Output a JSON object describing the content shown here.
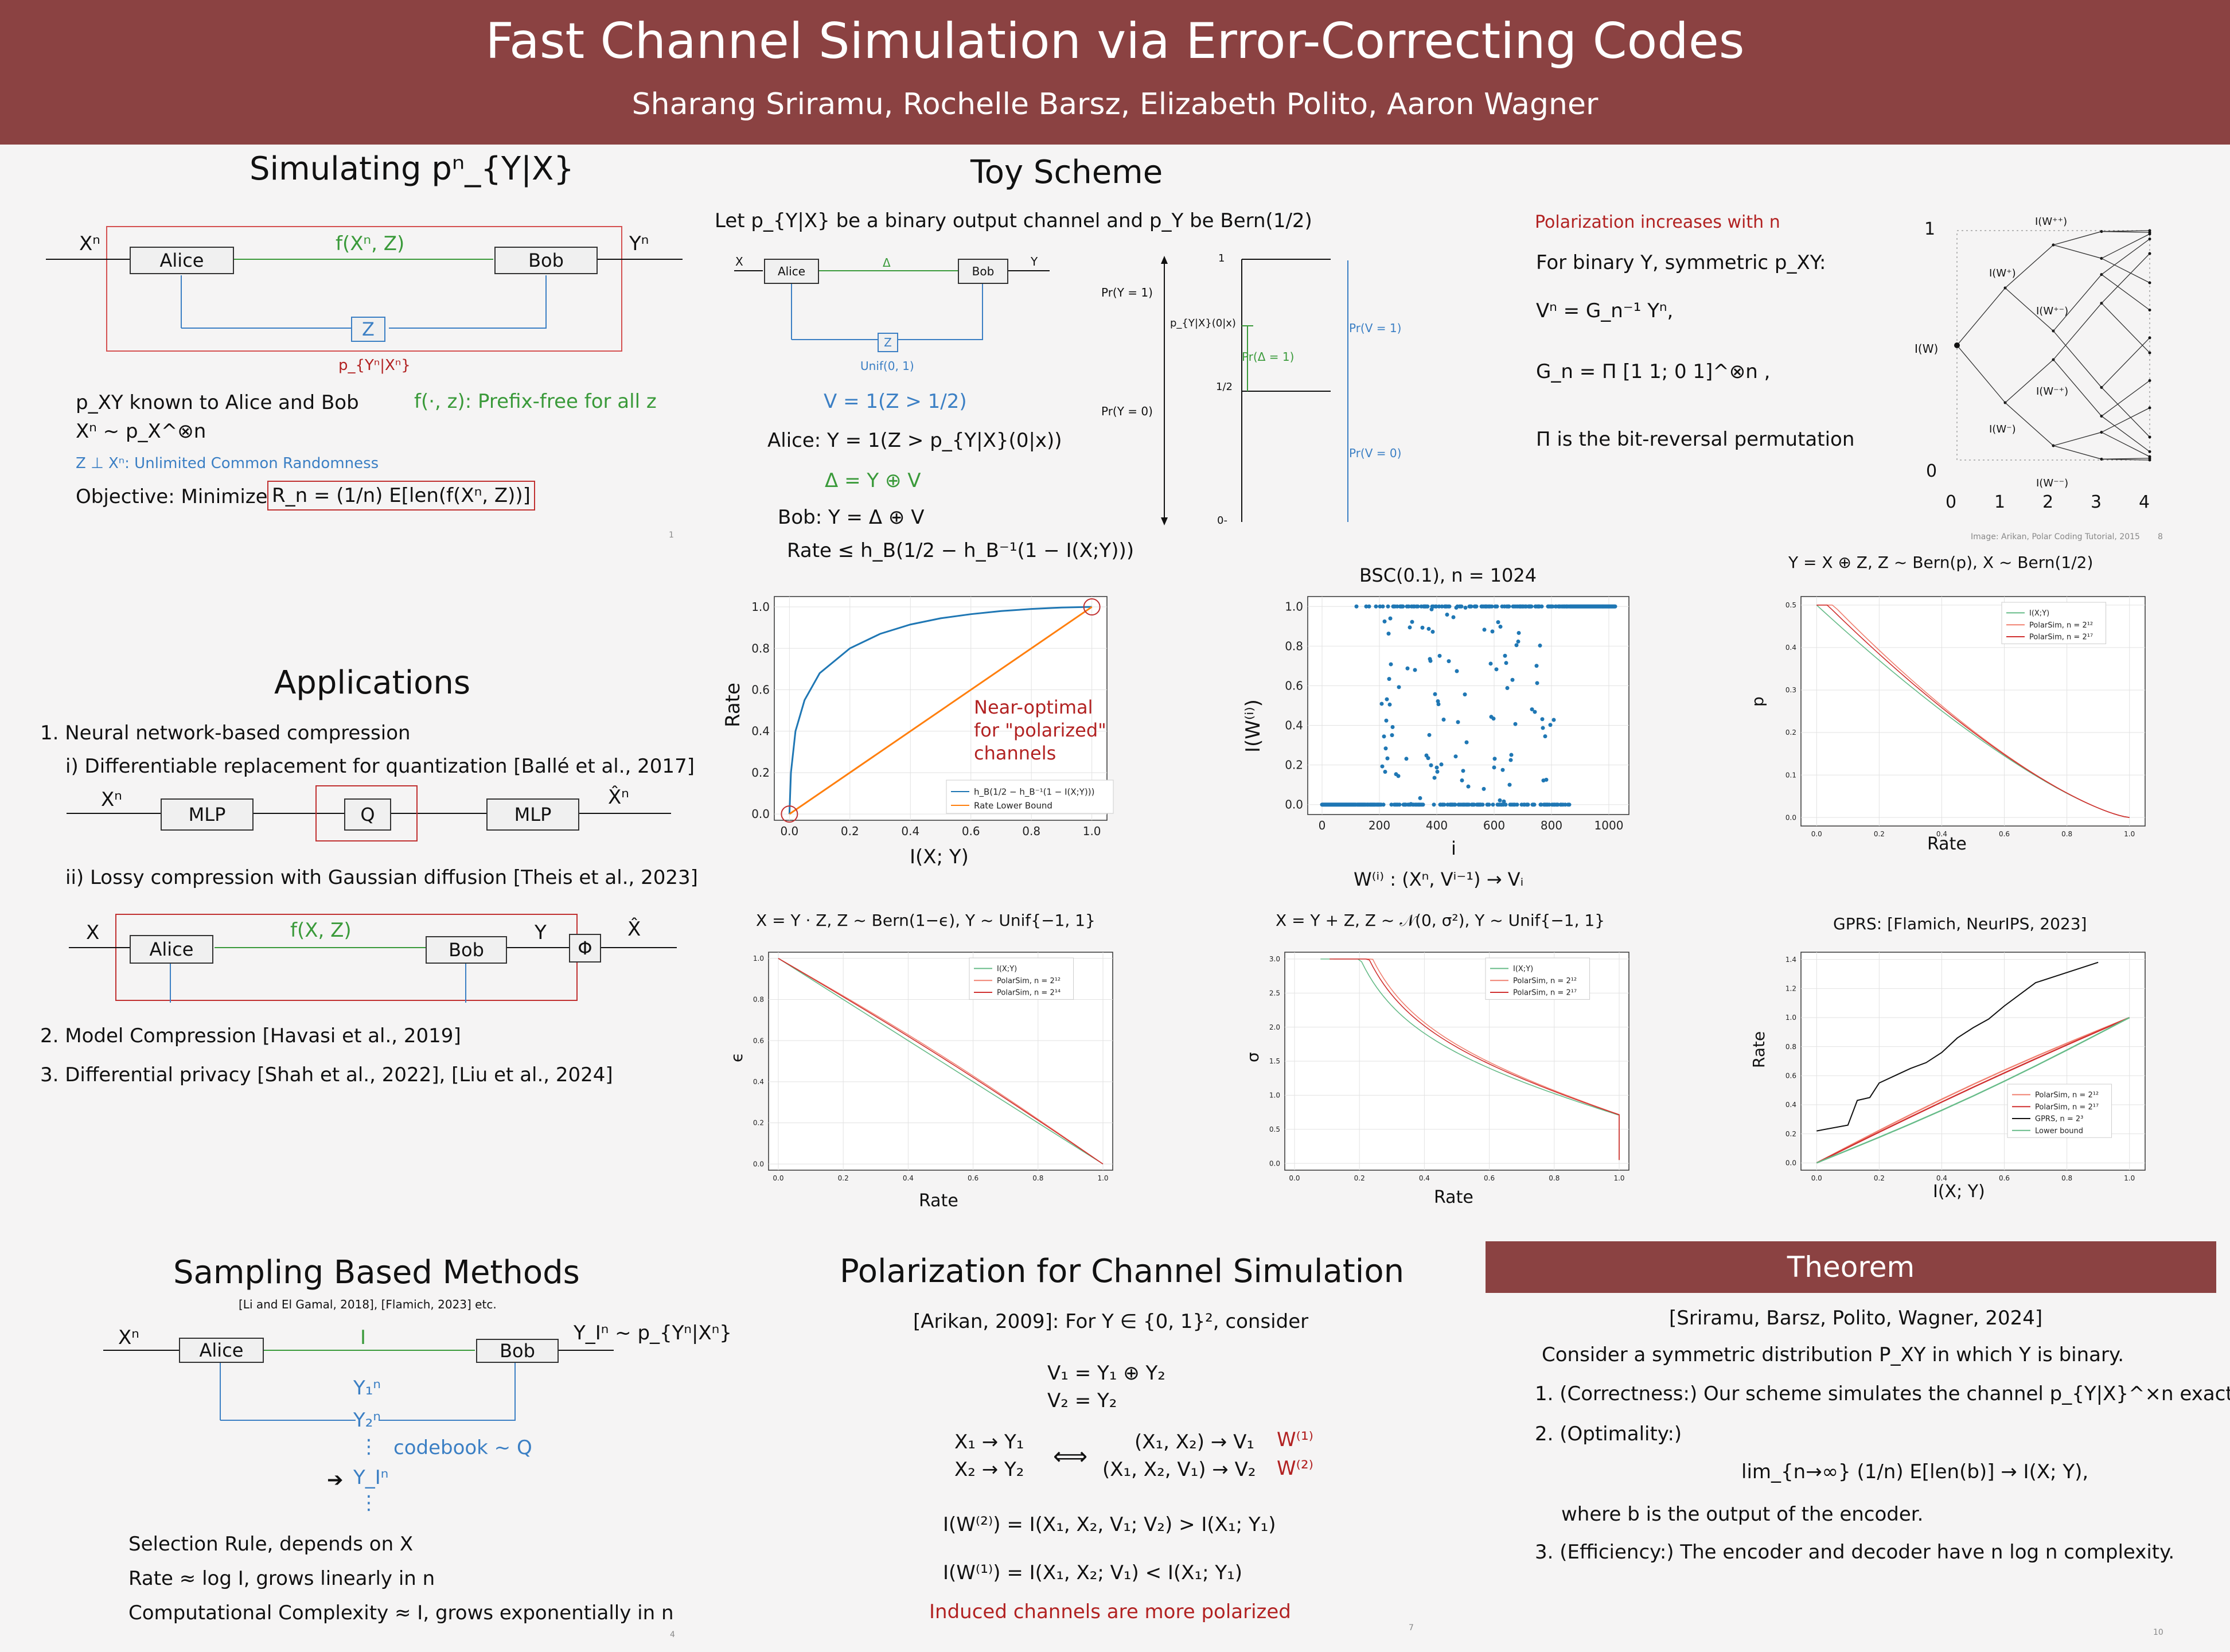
{
  "header": {
    "title": "Fast Channel Simulation via Error-Correcting Codes",
    "authors": "Sharang Sriramu, Rochelle Barsz, Elizabeth Polito, Aaron Wagner"
  },
  "sim": {
    "title": "Simulating pⁿ_{Y|X}",
    "xn": "Xⁿ",
    "yn": "Yⁿ",
    "alice": "Alice",
    "bob": "Bob",
    "f": "f(Xⁿ, Z)",
    "z": "Z",
    "p": "p_{Yⁿ|Xⁿ}",
    "l1": "p_XY known to Alice and Bob",
    "l1r": "f(·, z): Prefix-free for all z",
    "l2": "Xⁿ ~ p_X^⊗n",
    "l3": "Z ⊥ Xⁿ: Unlimited Common Randomness",
    "l4a": "Objective: Minimize",
    "l4b": "R_n = (1/n) E[len(f(Xⁿ, Z))]",
    "page": "1"
  },
  "toy": {
    "title": "Toy Scheme",
    "intro": "Let p_{Y|X} be a binary output channel and p_Y be Bern(1/2)",
    "x": "X",
    "y": "Y",
    "delta": "Δ",
    "alice": "Alice",
    "bob": "Bob",
    "z": "Z",
    "unif": "Unif(0, 1)",
    "v": "V = 1(Z > 1/2)",
    "alice_rule": "Alice: Y = 1(Z > p_{Y|X}(0|x))",
    "d": "Δ = Y ⊕ V",
    "bob_rule": "Bob: Y = Δ ⊕ V",
    "rate": "Rate ≤ h_B(1/2 − h_B⁻¹(1 − I(X;Y)))",
    "pr1": "Pr(Y = 1)",
    "pr0": "Pr(Y = 0)",
    "pyx": "p_{Y|X}(0|x)",
    "pd": "Pr(Δ = 1)",
    "pv1": "Pr(V = 1)",
    "pv0": "Pr(V = 0)",
    "one": "1",
    "half": "1/2",
    "zero": "0-"
  },
  "pol": {
    "title": "Polarization increases with n",
    "l1": "For binary Y, symmetric p_XY:",
    "l2": "Vⁿ = G_n⁻¹ Yⁿ,",
    "l3": "G_n = Π [1 1; 0 1]^⊗n ,",
    "l4": "Π is the bit-reversal permutation",
    "credit": "Image: Arikan, Polar Coding Tutorial, 2015",
    "page": "8",
    "yticks": [
      "1",
      "I(W)",
      "0"
    ],
    "xticks": [
      "0",
      "1",
      "2",
      "3",
      "4"
    ],
    "wlabels": [
      "I(W⁺⁺)",
      "I(W⁺)",
      "I(W⁺⁻)",
      "I(W⁻⁺)",
      "I(W⁻)",
      "I(W⁻⁻)"
    ]
  },
  "apps": {
    "title": "Applications",
    "i1": "1. Neural network-based compression",
    "i1a": "i) Differentiable replacement for quantization [Ballé et al., 2017]",
    "xn": "Xⁿ",
    "mlp1": "MLP",
    "q": "Q",
    "mlp2": "MLP",
    "xhatn": "X̂ⁿ",
    "i1b": "ii) Lossy compression with Gaussian diffusion [Theis et al., 2023]",
    "x": "X",
    "alice": "Alice",
    "f": "f(X, Z)",
    "bob": "Bob",
    "y": "Y",
    "phi": "Φ",
    "xhat": "X̂",
    "i2": "2. Model Compression [Havasi et al., 2019]",
    "i3": "3. Differential privacy [Shah et al., 2022], [Liu et al., 2024]"
  },
  "samp": {
    "title": "Sampling Based Methods",
    "refs": "[Li and El Gamal, 2018], [Flamich, 2023] etc.",
    "xn": "Xⁿ",
    "alice": "Alice",
    "i": "I",
    "bob": "Bob",
    "yi": "Y_Iⁿ ~ p_{Yⁿ|Xⁿ}",
    "y1": "Y₁ⁿ",
    "y2": "Y₂ⁿ",
    "dots": "⋮",
    "yI": "Y_Iⁿ",
    "cb": "codebook ~ Q",
    "arrow": "➔",
    "l1": "Selection Rule, depends on X",
    "l2": "Rate ≈ log I, grows linearly in n",
    "l3": "Computational Complexity ≈ I, grows exponentially in n",
    "page": "4"
  },
  "pcs": {
    "title": "Polarization for Channel Simulation",
    "l1": "[Arikan, 2009]: For Y ∈ {0, 1}², consider",
    "v1": "V₁ = Y₁ ⊕ Y₂",
    "v2": "V₂ = Y₂",
    "x1": "X₁ → Y₁",
    "x2": "X₂ → Y₂",
    "iff": "⟺",
    "c1": "(X₁, X₂) → V₁",
    "c2": "(X₁, X₂, V₁) → V₂",
    "w1": "W⁽¹⁾",
    "w2": "W⁽²⁾",
    "e1": "I(W⁽²⁾) = I(X₁, X₂, V₁; V₂) > I(X₁; Y₁)",
    "e2": "I(W⁽¹⁾) = I(X₁, X₂; V₁) < I(X₁; Y₁)",
    "note": "Induced channels are more polarized",
    "page": "7"
  },
  "thm": {
    "title": "Theorem",
    "cite": "[Sriramu, Barsz, Polito, Wagner, 2024]",
    "l1": "Consider a symmetric distribution P_XY in which Y is binary.",
    "t1": "1. (Correctness:) Our scheme simulates the channel p_{Y|X}^×n exactly.",
    "t2": "2. (Optimality:)",
    "t2eq": "lim_{n→∞} (1/n) E[len(b)] → I(X; Y),",
    "t2b": "where b is the output of the encoder.",
    "t3": "3. (Efficiency:) The encoder and decoder have n log n complexity.",
    "page": "10"
  },
  "charts": {
    "rate_xlabel": "I(X; Y)",
    "rate_ylabel": "Rate",
    "near": [
      "Near-optimal",
      "for \"polarized\"",
      "channels"
    ],
    "bsc_title": "BSC(0.1), n = 1024",
    "bsc_ylabel": "I(W⁽ⁱ⁾)",
    "bsc_xlabel": "i",
    "bsc_caption": "W⁽ⁱ⁾ : (Xⁿ, Vⁱ⁻¹) → Vᵢ",
    "c3_title": "Y = X ⊕ Z,  Z ~ Bern(p),  X ~ Bern(1/2)",
    "c4_title": "X = Y · Z,  Z ~ Bern(1−ϵ),  Y ~ Unif{−1, 1}",
    "c5_title": "X = Y + Z,  Z ~ 𝒩(0, σ²),  Y ~ Unif{−1, 1}",
    "c6_title": "GPRS: [Flamich, NeurIPS, 2023]"
  },
  "chart_data": [
    {
      "type": "line",
      "xlabel": "I(X; Y)",
      "ylabel": "Rate",
      "xlim": [
        0,
        1
      ],
      "ylim": [
        0,
        1
      ],
      "xticks": [
        "0.0",
        "0.2",
        "0.4",
        "0.6",
        "0.8",
        "1.0"
      ],
      "yticks": [
        "0.0",
        "0.2",
        "0.4",
        "0.6",
        "0.8",
        "1.0"
      ],
      "series": [
        {
          "name": "h_B(1/2 − h_B⁻¹(1 − I(X;Y)))",
          "color": "#1f77b4",
          "x": [
            0,
            0.005,
            0.02,
            0.05,
            0.1,
            0.2,
            0.3,
            0.4,
            0.5,
            0.6,
            0.7,
            0.8,
            0.9,
            1.0
          ],
          "y": [
            0,
            0.2,
            0.4,
            0.55,
            0.68,
            0.8,
            0.87,
            0.915,
            0.945,
            0.965,
            0.98,
            0.99,
            0.997,
            1.0
          ]
        },
        {
          "name": "Rate Lower Bound",
          "color": "#ff7f0e",
          "x": [
            0,
            1
          ],
          "y": [
            0,
            1
          ]
        }
      ]
    },
    {
      "type": "scatter",
      "title": "BSC(0.1), n = 1024",
      "xlabel": "i",
      "ylabel": "I(W⁽ⁱ⁾)",
      "xlim": [
        -50,
        1070
      ],
      "ylim": [
        -0.05,
        1.05
      ],
      "xticks": [
        "0",
        "200",
        "400",
        "600",
        "800",
        "1000"
      ],
      "yticks": [
        "0.0",
        "0.2",
        "0.4",
        "0.6",
        "0.8",
        "1.0"
      ],
      "color": "#1f77b4"
    },
    {
      "type": "line",
      "xlabel": "Rate",
      "ylabel": "p",
      "xlim": [
        0,
        1
      ],
      "ylim": [
        0,
        0.5
      ],
      "xticks": [
        "0.0",
        "0.2",
        "0.4",
        "0.6",
        "0.8",
        "1.0"
      ],
      "yticks": [
        "0.0",
        "0.1",
        "0.2",
        "0.3",
        "0.4",
        "0.5"
      ],
      "series": [
        {
          "name": "I(X;Y)",
          "color": "#66bb88"
        },
        {
          "name": "PolarSim, n = 2¹²",
          "color": "#f08070"
        },
        {
          "name": "PolarSim, n = 2¹⁷",
          "color": "#d03030"
        }
      ]
    },
    {
      "type": "line",
      "xlabel": "Rate",
      "ylabel": "ϵ",
      "xlim": [
        0,
        1
      ],
      "ylim": [
        0,
        1
      ],
      "xticks": [
        "0.0",
        "0.2",
        "0.4",
        "0.6",
        "0.8",
        "1.0"
      ],
      "yticks": [
        "0.0",
        "0.2",
        "0.4",
        "0.6",
        "0.8",
        "1.0"
      ],
      "series": [
        {
          "name": "I(X;Y)",
          "color": "#66bb88"
        },
        {
          "name": "PolarSim, n = 2¹²",
          "color": "#f08070"
        },
        {
          "name": "PolarSim, n = 2¹⁴",
          "color": "#d03030"
        }
      ]
    },
    {
      "type": "line",
      "xlabel": "Rate",
      "ylabel": "σ",
      "xlim": [
        0,
        1
      ],
      "ylim": [
        0,
        3
      ],
      "xticks": [
        "0.0",
        "0.2",
        "0.4",
        "0.6",
        "0.8",
        "1.0"
      ],
      "yticks": [
        "0.0",
        "0.5",
        "1.0",
        "1.5",
        "2.0",
        "2.5",
        "3.0"
      ],
      "series": [
        {
          "name": "I(X;Y)",
          "color": "#66bb88"
        },
        {
          "name": "PolarSim, n = 2¹²",
          "color": "#f08070"
        },
        {
          "name": "PolarSim, n = 2¹⁷",
          "color": "#d03030"
        }
      ]
    },
    {
      "type": "line",
      "xlabel": "I(X; Y)",
      "ylabel": "Rate",
      "xlim": [
        0,
        1
      ],
      "ylim": [
        0,
        1.4
      ],
      "xticks": [
        "0.0",
        "0.2",
        "0.4",
        "0.6",
        "0.8",
        "1.0"
      ],
      "yticks": [
        "0.0",
        "0.2",
        "0.4",
        "0.6",
        "0.8",
        "1.0",
        "1.2",
        "1.4"
      ],
      "series": [
        {
          "name": "PolarSim, n = 2¹²",
          "color": "#f08070",
          "x": [
            0,
            1
          ],
          "y": [
            0,
            1
          ]
        },
        {
          "name": "PolarSim, n = 2¹⁷",
          "color": "#d03030",
          "x": [
            0,
            1
          ],
          "y": [
            0,
            1
          ]
        },
        {
          "name": "GPRS, n = 2³",
          "color": "#111111",
          "x": [
            0.0,
            0.1,
            0.13,
            0.17,
            0.2,
            0.25,
            0.3,
            0.35,
            0.4,
            0.45,
            0.5,
            0.55,
            0.6,
            0.7,
            0.8,
            0.9
          ],
          "y": [
            0.22,
            0.26,
            0.43,
            0.45,
            0.55,
            0.6,
            0.65,
            0.69,
            0.76,
            0.86,
            0.93,
            0.99,
            1.08,
            1.24,
            1.31,
            1.38
          ]
        },
        {
          "name": "Lower bound",
          "color": "#66bb88",
          "x": [
            0,
            1
          ],
          "y": [
            0,
            1
          ]
        }
      ]
    }
  ]
}
